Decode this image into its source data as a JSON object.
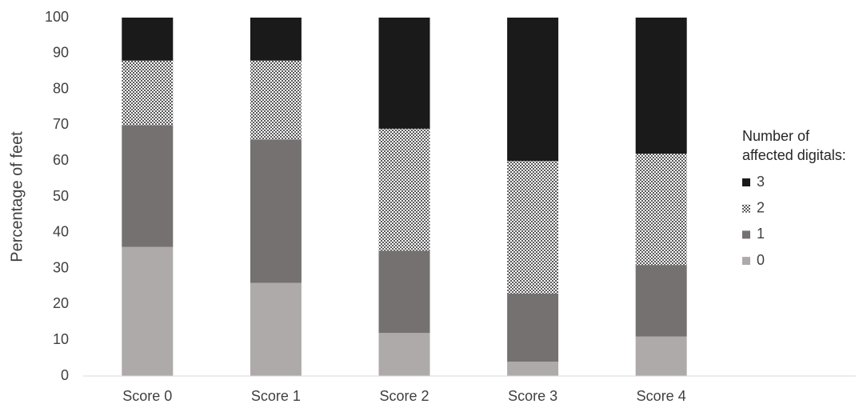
{
  "chart_data": {
    "type": "stacked_bar",
    "y_label": "Percentage of feet",
    "categories": [
      "Score 0",
      "Score 1",
      "Score 2",
      "Score 3",
      "Score 4"
    ],
    "series": [
      {
        "name": "0",
        "color": "#aeaaaa",
        "values": [
          36,
          26,
          12,
          4,
          11
        ]
      },
      {
        "name": "1",
        "color": "#767171",
        "values": [
          34,
          40,
          23,
          19,
          20
        ]
      },
      {
        "name": "2",
        "color": "#595959",
        "pattern": "checker",
        "values": [
          18,
          22,
          34,
          37,
          31
        ]
      },
      {
        "name": "3",
        "color": "#1a1a1a",
        "values": [
          12,
          12,
          31,
          40,
          38
        ]
      }
    ],
    "legend_title": "Number of\naffected digitals:",
    "legend": "right",
    "ylim": [
      0,
      100
    ],
    "yticks": [
      0,
      10,
      20,
      30,
      40,
      50,
      60,
      70,
      80,
      90,
      100
    ],
    "grid": false
  }
}
